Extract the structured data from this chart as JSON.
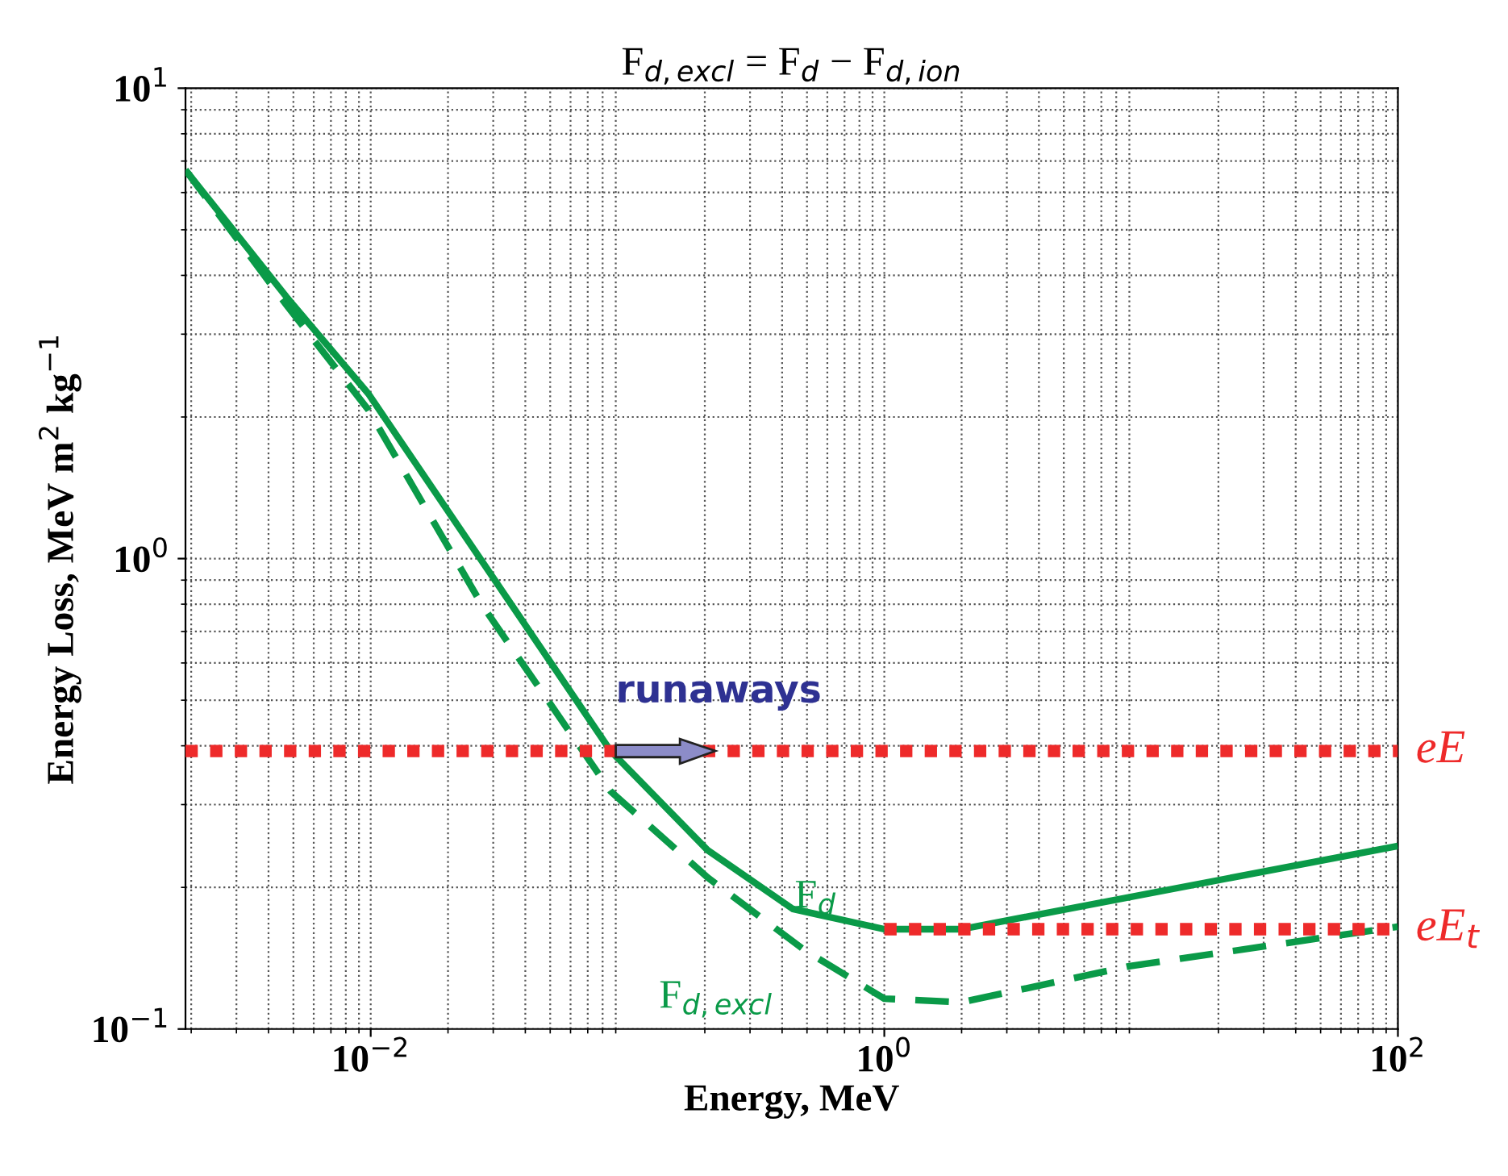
{
  "chart_data": {
    "type": "line",
    "title": "F$_{d,excl}$ = F$_{d}$ − F$_{d,ion}$",
    "xlabel": "Energy, MeV",
    "ylabel": "Energy Loss, MeV m$^{2}$ kg$^{−1}$",
    "log": "xy",
    "grid": true,
    "xlim": [
      0.0019,
      100
    ],
    "ylim": [
      0.1,
      10
    ],
    "xticks": [
      {
        "value": 0.01,
        "label": "10$^{−2}$"
      },
      {
        "value": 1,
        "label": "10$^{0}$"
      },
      {
        "value": 100,
        "label": "10$^{2}$"
      }
    ],
    "yticks": [
      {
        "value": 0.1,
        "label": "10$^{−1}$"
      },
      {
        "value": 1,
        "label": "10$^{0}$"
      },
      {
        "value": 10,
        "label": "10$^{1}$"
      }
    ],
    "series": [
      {
        "color": "#0a9a48",
        "line_style": "solid",
        "x": [
          0.0019,
          0.0047,
          0.0098,
          0.086,
          0.205,
          0.44,
          1,
          2,
          100
        ],
        "values": [
          6.7,
          3.6,
          2.24,
          0.39,
          0.24,
          0.18,
          0.163,
          0.163,
          0.245
        ]
      },
      {
        "color": "#0a9a48",
        "line_style": "dashed",
        "x": [
          0.0019,
          0.0047,
          0.0098,
          0.027,
          0.086,
          0.205,
          0.49,
          1,
          2,
          9,
          100
        ],
        "values": [
          6.7,
          3.46,
          2.07,
          0.8,
          0.32,
          0.21,
          0.147,
          0.116,
          0.114,
          0.136,
          0.165
        ]
      },
      {
        "color": "#ee2a2a",
        "line_style": "dotted",
        "x": [
          0.0019,
          100
        ],
        "values": [
          0.39,
          0.39
        ]
      },
      {
        "color": "#ee2a2a",
        "line_style": "dotted",
        "x": [
          1,
          100
        ],
        "values": [
          0.163,
          0.163
        ]
      }
    ],
    "annotations": [
      {
        "text": "F$_{d}$",
        "x": 1,
        "y": 0.163
      },
      {
        "text": "F$_{d,excl}$",
        "x": 0.49,
        "y": 0.147
      },
      {
        "text": "eE",
        "x": 100,
        "y": 0.39
      },
      {
        "text": "eE$_{t}$",
        "x": 100,
        "y": 0.163
      },
      "runaways"
    ]
  }
}
